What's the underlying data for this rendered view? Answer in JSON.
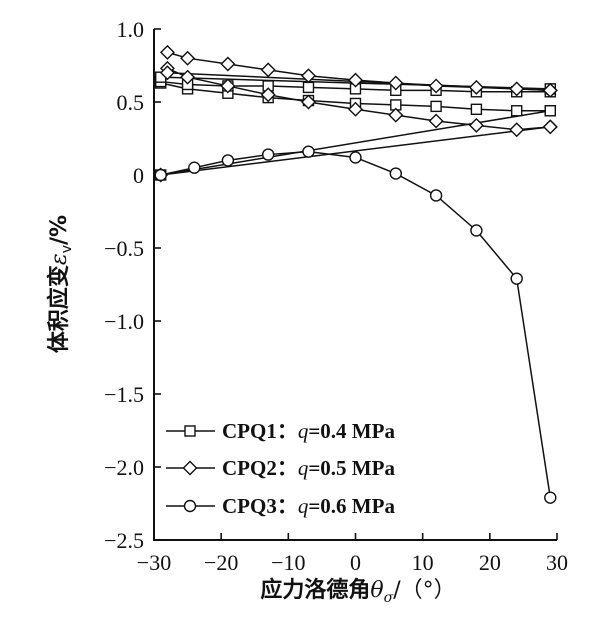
{
  "chart_data": {
    "type": "line",
    "title": "",
    "xlabel": "应力洛德角θσ/(°)",
    "xlabel_parts": {
      "text": "应力洛德角",
      "symbol": "θ",
      "subscript": "σ",
      "unit": "/（°）"
    },
    "ylabel": "体积应变εv/%",
    "ylabel_parts": {
      "text": "体积应变",
      "symbol": "ε",
      "subscript": "v",
      "unit": "/%"
    },
    "xlim": [
      -30,
      30
    ],
    "ylim": [
      -2.5,
      1.0
    ],
    "xticks": [
      -30,
      -20,
      -10,
      0,
      10,
      20,
      30
    ],
    "xtick_labels": [
      "−30",
      "−20",
      "−10",
      "0",
      "10",
      "20",
      "30"
    ],
    "yticks": [
      1.0,
      0.5,
      0,
      -0.5,
      -1.0,
      -1.5,
      -2.0,
      -2.5
    ],
    "ytick_labels": [
      "1.0",
      "0.5",
      "0",
      "−0.5",
      "−1.0",
      "−1.5",
      "−2.0",
      "−2.5"
    ],
    "grid": false,
    "legend_position": "bottom-left",
    "series": [
      {
        "name": "CPQ1",
        "label_prefix": "CPQ1：",
        "label_q": "q",
        "label_value": "=0.4 MPa",
        "marker": "square",
        "lines": [
          {
            "x": [
              -29,
              29
            ],
            "y": [
              0.0,
              0.44
            ]
          },
          {
            "x": [
              -29,
              -25,
              -19,
              -13,
              -7,
              0,
              6,
              12,
              18,
              24,
              29
            ],
            "y": [
              0.63,
              0.59,
              0.56,
              0.53,
              0.51,
              0.49,
              0.48,
              0.47,
              0.45,
              0.44,
              0.44
            ]
          },
          {
            "x": [
              -29,
              -25,
              -19,
              -13,
              -7,
              0,
              6,
              12,
              18,
              24,
              29
            ],
            "y": [
              0.64,
              0.62,
              0.61,
              0.61,
              0.6,
              0.59,
              0.58,
              0.58,
              0.57,
              0.57,
              0.57
            ]
          },
          {
            "x": [
              -29,
              29
            ],
            "y": [
              0.67,
              0.59
            ]
          }
        ]
      },
      {
        "name": "CPQ2",
        "label_prefix": "CPQ2：",
        "label_q": "q",
        "label_value": "=0.5 MPa",
        "marker": "diamond",
        "lines": [
          {
            "x": [
              -29,
              29
            ],
            "y": [
              0.0,
              0.33
            ]
          },
          {
            "x": [
              -28,
              -25,
              -19,
              -13,
              -7,
              0,
              6,
              12,
              18,
              24,
              29
            ],
            "y": [
              0.73,
              0.67,
              0.61,
              0.55,
              0.5,
              0.45,
              0.41,
              0.37,
              0.34,
              0.31,
              0.33
            ]
          },
          {
            "x": [
              -28,
              -25,
              -19,
              -13,
              -7,
              0,
              6,
              12,
              18,
              24,
              29
            ],
            "y": [
              0.84,
              0.8,
              0.76,
              0.72,
              0.68,
              0.65,
              0.63,
              0.61,
              0.6,
              0.59,
              0.58
            ]
          },
          {
            "x": [
              -28,
              29
            ],
            "y": [
              0.7,
              0.58
            ]
          }
        ]
      },
      {
        "name": "CPQ3",
        "label_prefix": "CPQ3：",
        "label_q": "q",
        "label_value": "=0.6 MPa",
        "marker": "circle",
        "lines": [
          {
            "x": [
              -29,
              -24,
              -19,
              -13,
              -7,
              0,
              6,
              12,
              18,
              24,
              29
            ],
            "y": [
              0.0,
              0.05,
              0.1,
              0.14,
              0.16,
              0.12,
              0.01,
              -0.14,
              -0.38,
              -0.71,
              -2.21
            ]
          }
        ]
      }
    ]
  }
}
